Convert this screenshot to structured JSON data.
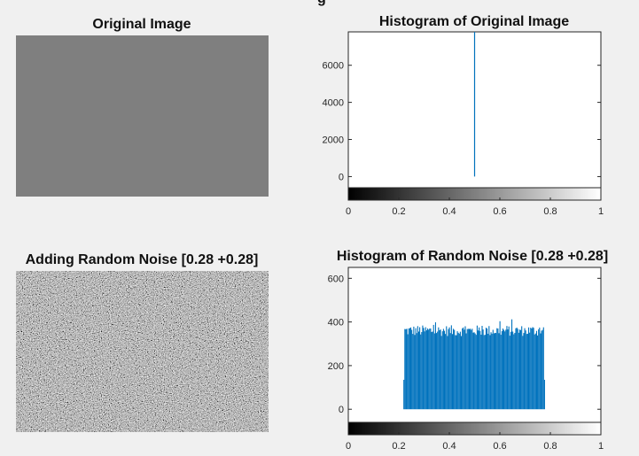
{
  "figure": {
    "partial_marks": [
      {
        "char": "g"
      },
      {
        "char": ")"
      }
    ]
  },
  "panels": {
    "original_image": {
      "title": "Original Image",
      "fill_gray": 0.5,
      "fill_color": "#7f7f7f"
    },
    "noisy_image": {
      "title": "Adding Random Noise [0.28 +0.28]"
    }
  },
  "chart_data": [
    {
      "type": "bar",
      "title": "Histogram of Original Image",
      "xlabel": "",
      "ylabel": "",
      "xlim": [
        0,
        1
      ],
      "ylim": [
        -600,
        7800
      ],
      "x_ticks": [
        "0",
        "0.2",
        "0.4",
        "0.6",
        "0.8",
        "1"
      ],
      "y_ticks": [
        "0",
        "2000",
        "4000",
        "6000"
      ],
      "bar_color": "#0072bd",
      "colorbar": "gray",
      "x": [
        0.5
      ],
      "values": [
        7800
      ]
    },
    {
      "type": "bar",
      "title": "Histogram of Random Noise [0.28 +0.28]",
      "xlabel": "",
      "ylabel": "",
      "xlim": [
        0,
        1
      ],
      "ylim": [
        -60,
        650
      ],
      "x_ticks": [
        "0",
        "0.2",
        "0.4",
        "0.6",
        "0.8",
        "1"
      ],
      "y_ticks": [
        "0",
        "200",
        "400",
        "600"
      ],
      "bar_color": "#0072bd",
      "colorbar": "gray",
      "x_range": [
        0.22,
        0.78
      ],
      "value_range": [
        135,
        412
      ],
      "typical_value": 360
    }
  ]
}
